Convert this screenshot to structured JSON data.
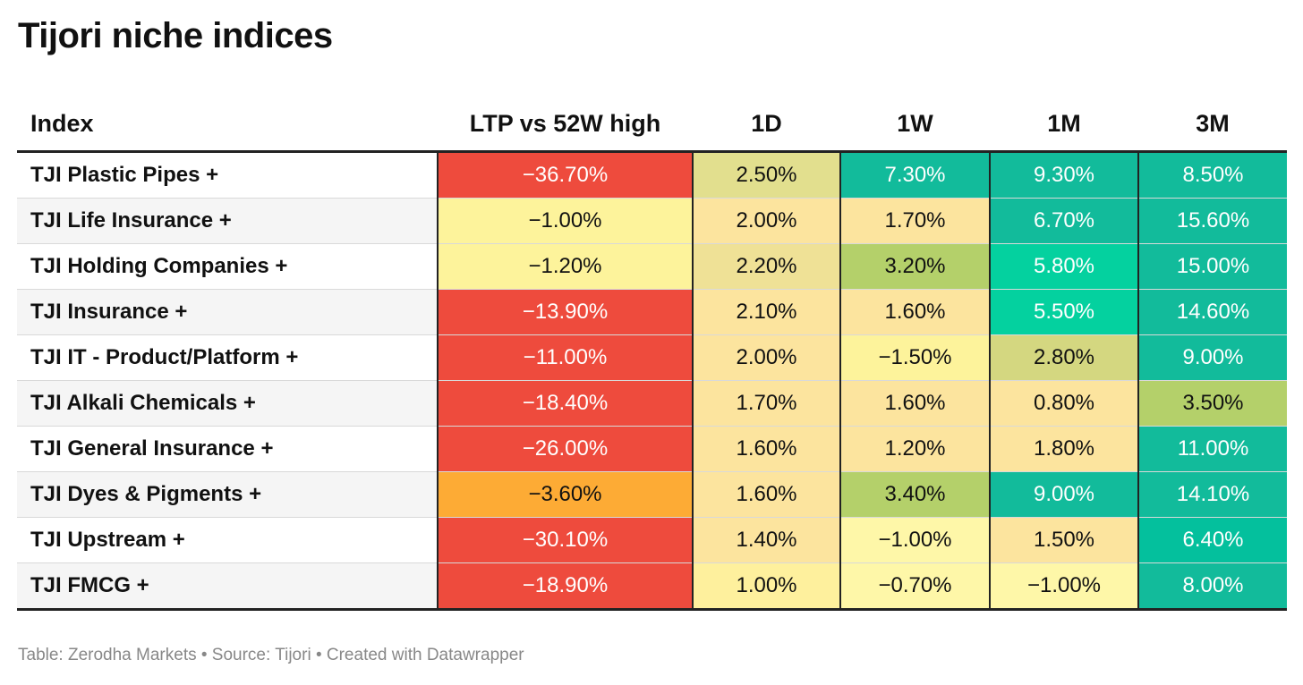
{
  "title": "Tijori niche indices",
  "footer": "Table: Zerodha Markets • Source: Tijori • Created with Datawrapper",
  "chart_data": {
    "type": "table",
    "columns": [
      "Index",
      "LTP vs 52W high",
      "1D",
      "1W",
      "1M",
      "3M"
    ],
    "rows": [
      {
        "name": "TJI Plastic Pipes +",
        "values": [
          -36.7,
          2.5,
          7.3,
          9.3,
          8.5
        ]
      },
      {
        "name": "TJI Life Insurance +",
        "values": [
          -1.0,
          2.0,
          1.7,
          6.7,
          15.6
        ]
      },
      {
        "name": "TJI Holding Companies +",
        "values": [
          -1.2,
          2.2,
          3.2,
          5.8,
          15.0
        ]
      },
      {
        "name": "TJI Insurance +",
        "values": [
          -13.9,
          2.1,
          1.6,
          5.5,
          14.6
        ]
      },
      {
        "name": "TJI IT - Product/Platform +",
        "values": [
          -11.0,
          2.0,
          -1.5,
          2.8,
          9.0
        ]
      },
      {
        "name": "TJI Alkali Chemicals +",
        "values": [
          -18.4,
          1.7,
          1.6,
          0.8,
          3.5
        ]
      },
      {
        "name": "TJI General Insurance +",
        "values": [
          -26.0,
          1.6,
          1.2,
          1.8,
          11.0
        ]
      },
      {
        "name": "TJI Dyes & Pigments +",
        "values": [
          -3.6,
          1.6,
          3.4,
          9.0,
          14.1
        ]
      },
      {
        "name": "TJI Upstream +",
        "values": [
          -30.1,
          1.4,
          -1.0,
          1.5,
          6.4
        ]
      },
      {
        "name": "TJI FMCG +",
        "values": [
          -18.9,
          1.0,
          -0.7,
          -1.0,
          8.0
        ]
      }
    ],
    "display": [
      [
        "−36.70%",
        "2.50%",
        "7.30%",
        "9.30%",
        "8.50%"
      ],
      [
        "−1.00%",
        "2.00%",
        "1.70%",
        "6.70%",
        "15.60%"
      ],
      [
        "−1.20%",
        "2.20%",
        "3.20%",
        "5.80%",
        "15.00%"
      ],
      [
        "−13.90%",
        "2.10%",
        "1.60%",
        "5.50%",
        "14.60%"
      ],
      [
        "−11.00%",
        "2.00%",
        "−1.50%",
        "2.80%",
        "9.00%"
      ],
      [
        "−18.40%",
        "1.70%",
        "1.60%",
        "0.80%",
        "3.50%"
      ],
      [
        "−26.00%",
        "1.60%",
        "1.20%",
        "1.80%",
        "11.00%"
      ],
      [
        "−3.60%",
        "1.60%",
        "3.40%",
        "9.00%",
        "14.10%"
      ],
      [
        "−30.10%",
        "1.40%",
        "−1.00%",
        "1.50%",
        "6.40%"
      ],
      [
        "−18.90%",
        "1.00%",
        "−0.70%",
        "−1.00%",
        "8.00%"
      ]
    ],
    "cell_colors": [
      [
        "#ee4b3d",
        "#e2df8e",
        "#12bb9b",
        "#12bb9b",
        "#12bb9b"
      ],
      [
        "#fdf39b",
        "#fce49e",
        "#fce49e",
        "#12bb9b",
        "#12bb9b"
      ],
      [
        "#fdf39b",
        "#efe196",
        "#b4d06a",
        "#04d19f",
        "#12bb9b"
      ],
      [
        "#ee4b3d",
        "#fce49e",
        "#fce49e",
        "#04d19f",
        "#12bb9b"
      ],
      [
        "#ee4b3d",
        "#fce49e",
        "#fdf39b",
        "#d4d780",
        "#12bb9b"
      ],
      [
        "#ee4b3d",
        "#fce49e",
        "#fce49e",
        "#fce49e",
        "#b4d06a"
      ],
      [
        "#ee4b3d",
        "#fce49e",
        "#fce49e",
        "#fce49e",
        "#12bb9b"
      ],
      [
        "#fdab35",
        "#fce49e",
        "#b4d06a",
        "#12bb9b",
        "#12bb9b"
      ],
      [
        "#ee4b3d",
        "#fce49e",
        "#fef7a8",
        "#fce49e",
        "#04c09d"
      ],
      [
        "#ee4b3d",
        "#fef09d",
        "#fef7a8",
        "#fef7a8",
        "#12bb9b"
      ]
    ],
    "light_text_colors": [
      "#12bb9b",
      "#04d19f",
      "#04c09d",
      "#ee4b3d"
    ]
  }
}
